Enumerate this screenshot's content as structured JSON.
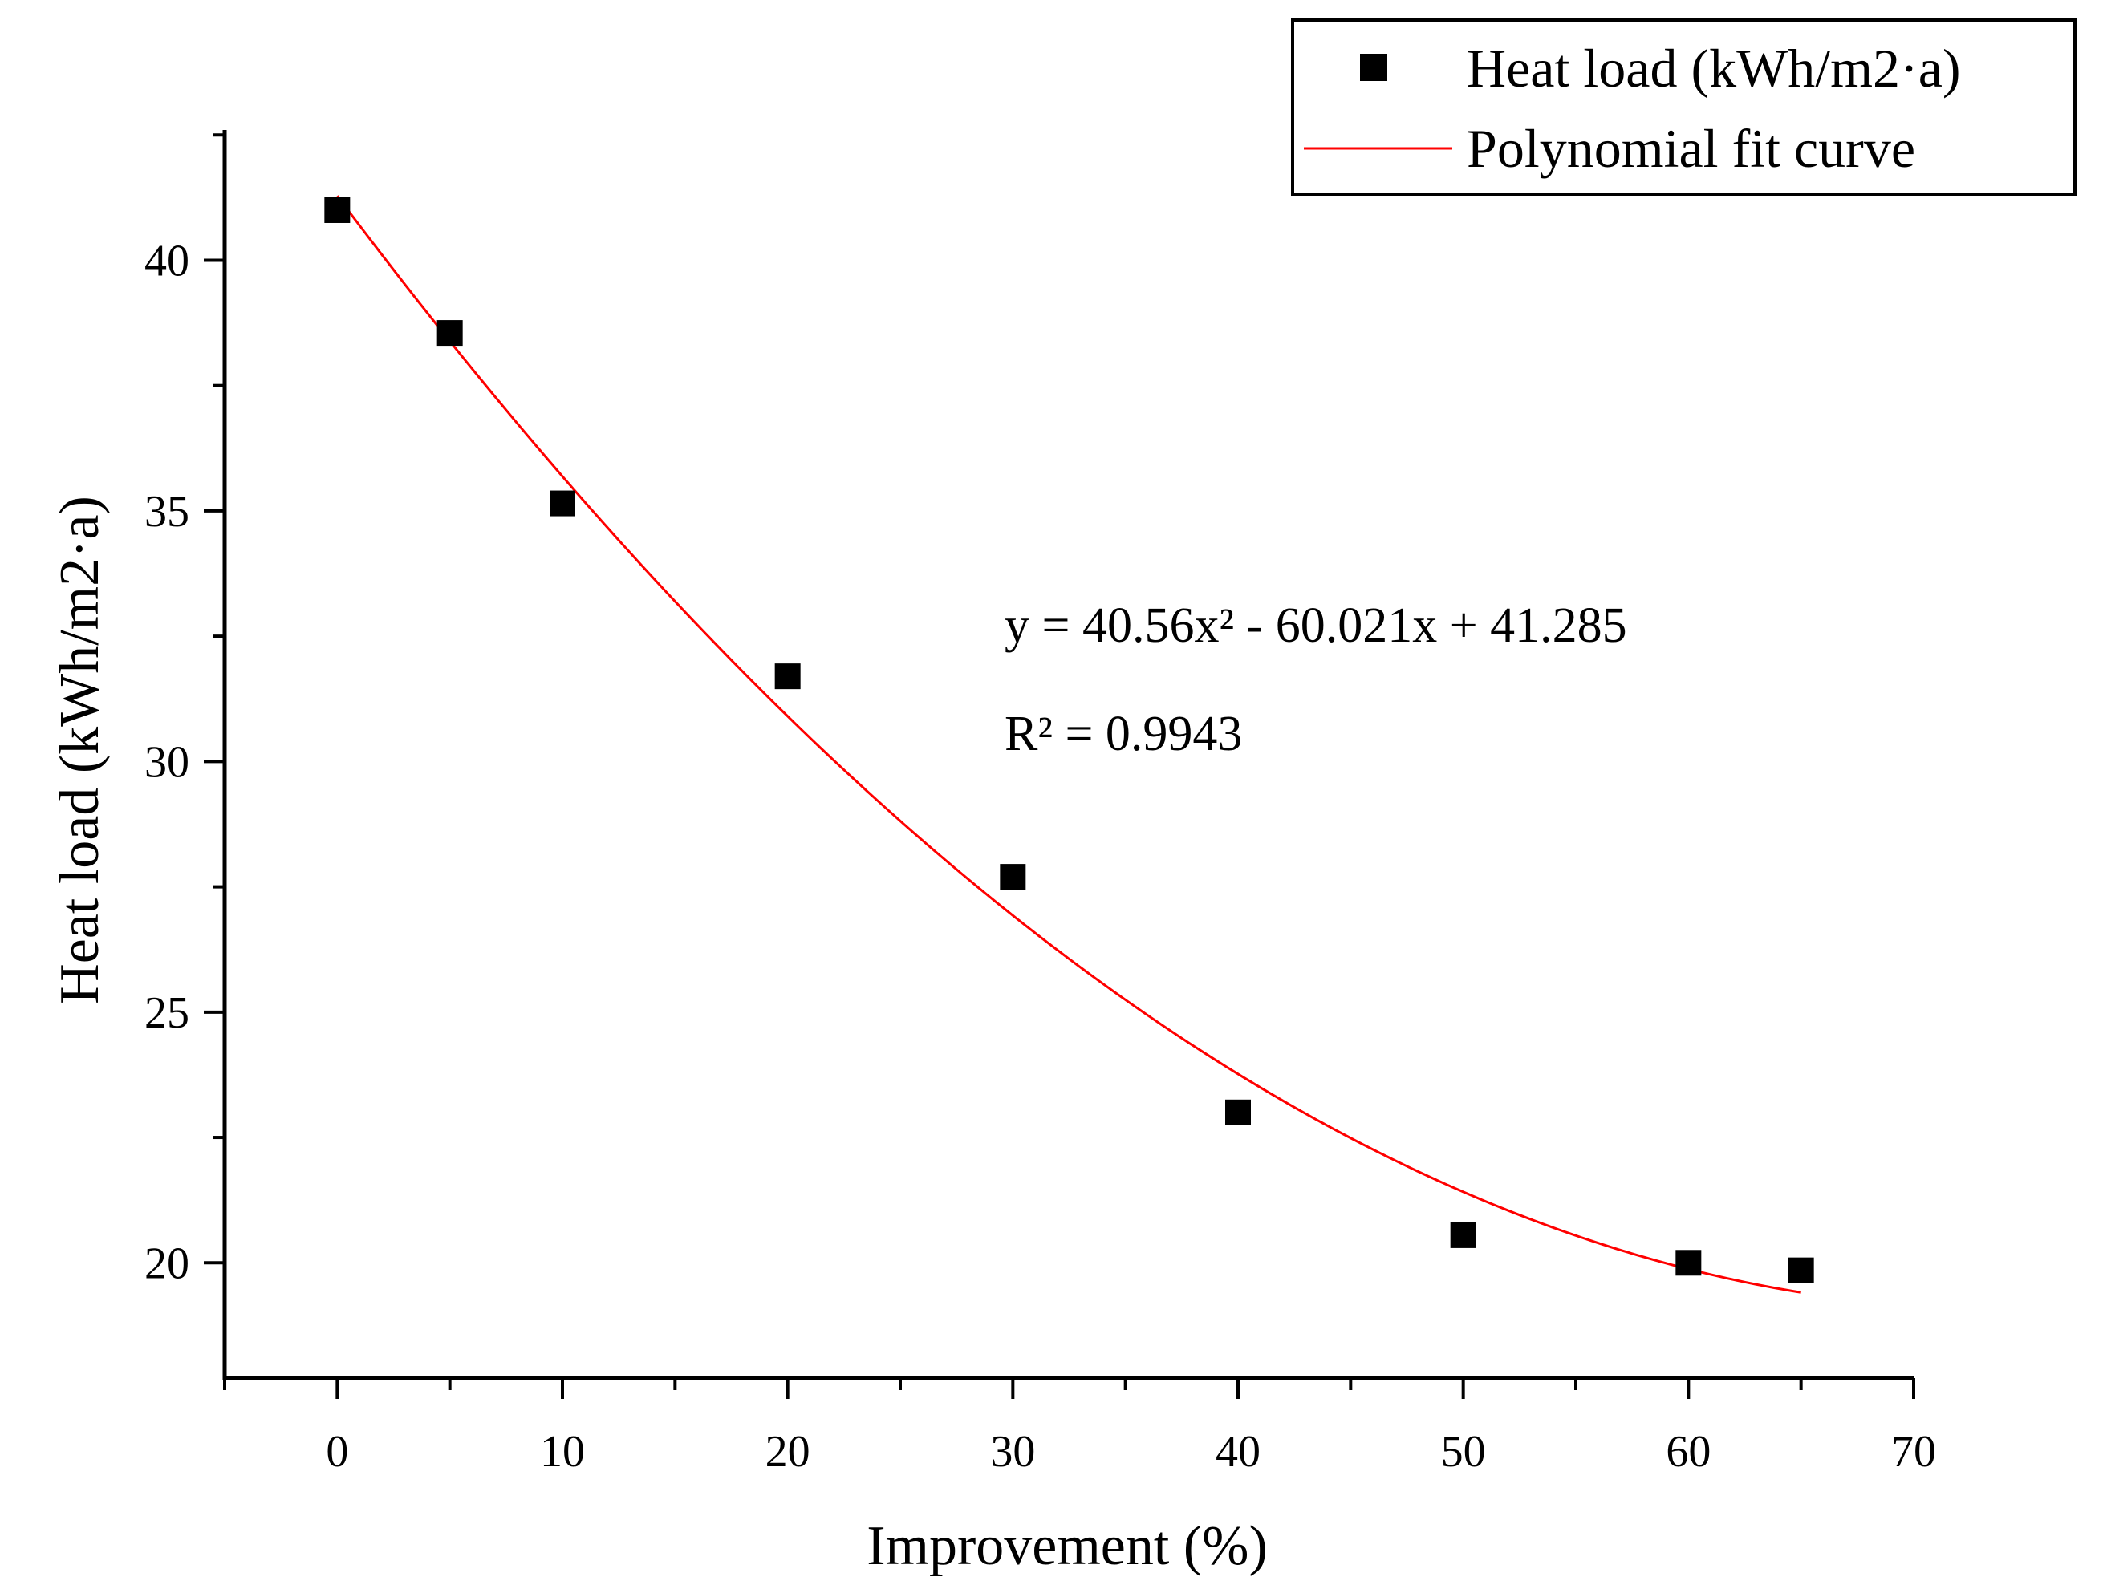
{
  "chart_data": {
    "type": "scatter",
    "title": "",
    "xlabel": "Improvement (%)",
    "ylabel": "Heat load (kWh/m2·a)",
    "xlim": [
      -5,
      70
    ],
    "ylim": [
      17.7,
      42.6
    ],
    "xticks": [
      0,
      10,
      20,
      30,
      40,
      50,
      60,
      70
    ],
    "yticks": [
      20,
      25,
      30,
      35,
      40
    ],
    "x_tick_labels": [
      "0",
      "10",
      "20",
      "30",
      "40",
      "50",
      "60",
      "70"
    ],
    "y_tick_labels": [
      "20",
      "25",
      "30",
      "35",
      "40"
    ],
    "x_minor_step": 5,
    "y_minor_step": 2.5,
    "grid": false,
    "legend_position": "top-right",
    "series": [
      {
        "name": "Heat load (kWh/m2·a)",
        "kind": "scatter",
        "marker": "square",
        "color": "#000000",
        "x": [
          0,
          5,
          10,
          20,
          30,
          40,
          50,
          60,
          65
        ],
        "y": [
          41.0,
          38.55,
          35.15,
          31.7,
          27.7,
          23.0,
          20.55,
          20.0,
          19.85
        ]
      },
      {
        "name": "Polynomial fit curve",
        "kind": "line",
        "color": "#ff0000",
        "fit": {
          "a": 40.56,
          "b": -60.021,
          "c": 41.285,
          "x_scale": 0.01,
          "x_range": [
            0,
            65
          ]
        }
      }
    ],
    "annotations": {
      "equation": "y = 40.56x² - 60.021x + 41.285",
      "r_squared": "R² = 0.9943"
    }
  }
}
